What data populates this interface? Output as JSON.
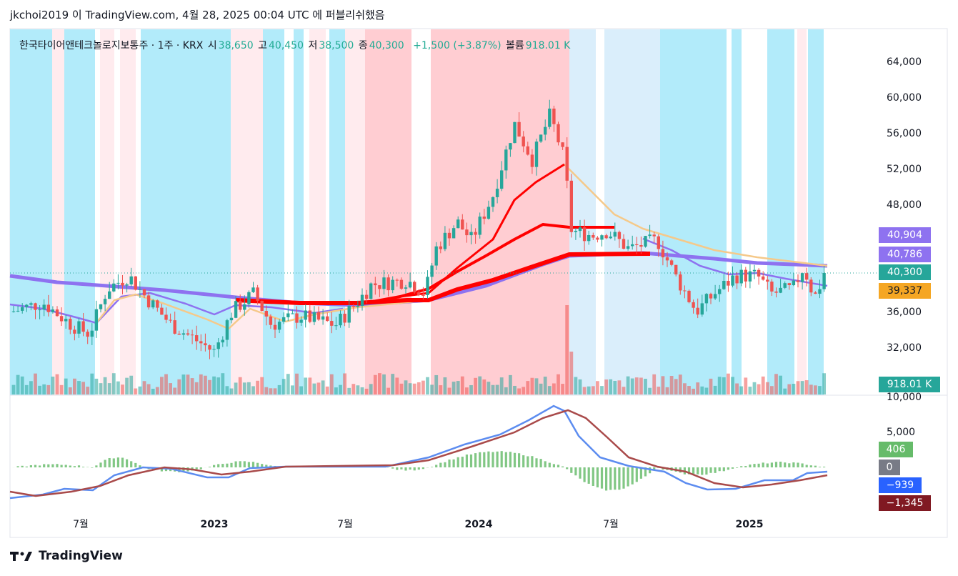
{
  "header": {
    "title": "jkchoi2019 이 TradingView.com, 4월 28, 2025 00:04 UTC 에 퍼블리쉬했음"
  },
  "footer": {
    "brand": "TradingView"
  },
  "legend": {
    "symbol": "한국타이어앤테크놀로지보통주 · 1주 · KRX",
    "open_label": "시",
    "open": "38,650",
    "high_label": "고",
    "high": "40,450",
    "low_label": "저",
    "low": "38,500",
    "close_label": "종",
    "close": "40,300",
    "change": "+1,500 (+3.87%)",
    "volume_label": "볼륨",
    "volume": "918.01 K"
  },
  "price_tags": [
    {
      "text": "40,904",
      "color": "#8e72f0"
    },
    {
      "text": "40,786",
      "color": "#8e72f0"
    },
    {
      "text": "40,300",
      "color": "#26a69a"
    },
    {
      "text": "39,337",
      "color": "#f5a623",
      "text_color": "#131722"
    },
    {
      "text": "918.01 K",
      "color": "#26a69a"
    }
  ],
  "macd_tags": [
    {
      "text": "406",
      "color": "#66bb6a"
    },
    {
      "text": "0",
      "color": "#787b86"
    },
    {
      "text": "−939",
      "color": "#2962ff"
    },
    {
      "text": "−1,345",
      "color": "#801922"
    }
  ],
  "chart_data": {
    "type": "candlestick",
    "price_axis_ticks": [
      "64,000",
      "60,000",
      "56,000",
      "52,000",
      "48,000",
      "36,000",
      "32,000"
    ],
    "volume_axis_tick": "10,000",
    "macd_axis_ticks": [
      "5,000"
    ],
    "x_tick_labels": [
      "7월",
      "2023",
      "7월",
      "2024",
      "7월",
      "2025"
    ],
    "x_tick_bold": [
      false,
      true,
      false,
      true,
      false,
      true
    ],
    "ylim": [
      29000,
      66000
    ],
    "last": {
      "open": 38650,
      "high": 40450,
      "low": 38500,
      "close": 40300
    },
    "colors": {
      "up": "#26a69a",
      "down": "#ef5350",
      "bg_blue": "#b2ebfa",
      "bg_red": "#ffcdd2",
      "bg_pink": "#ffebee",
      "bg_lightblue": "#daeefb"
    },
    "macd_colors": {
      "macd": "#5c8cf0",
      "signal": "#a94a4a",
      "hist": "#81c784"
    },
    "note_series": [
      "MA fast (red)",
      "MA slow (red thick)",
      "MA long (purple)",
      "MA mid (purple thin)",
      "MA (tan)"
    ]
  }
}
